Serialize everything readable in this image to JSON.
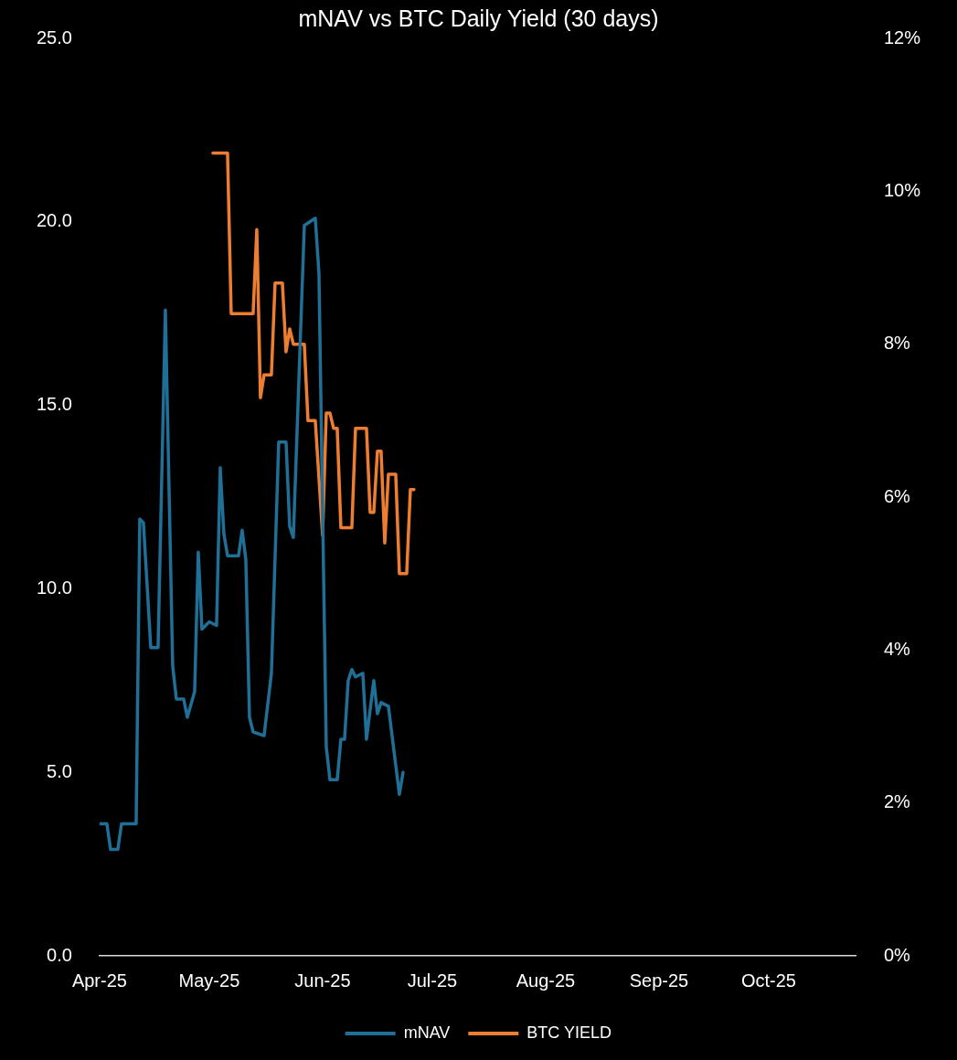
{
  "chart_data": {
    "type": "line",
    "title": "mNAV vs BTC Daily Yield (30 days)",
    "xlim": [
      "2025-04-01",
      "2025-10-25"
    ],
    "xticks": [
      {
        "value": "2025-04-01",
        "label": "Apr-25"
      },
      {
        "value": "2025-05-01",
        "label": "May-25"
      },
      {
        "value": "2025-06-01",
        "label": "Jun-25"
      },
      {
        "value": "2025-07-01",
        "label": "Jul-25"
      },
      {
        "value": "2025-08-01",
        "label": "Aug-25"
      },
      {
        "value": "2025-09-01",
        "label": "Sep-25"
      },
      {
        "value": "2025-10-01",
        "label": "Oct-25"
      }
    ],
    "ylim": [
      0,
      25
    ],
    "yticks": [
      {
        "value": 0,
        "label": "0.0"
      },
      {
        "value": 5,
        "label": "5.0"
      },
      {
        "value": 10,
        "label": "10.0"
      },
      {
        "value": 15,
        "label": "15.0"
      },
      {
        "value": 20,
        "label": "20.0"
      },
      {
        "value": 25,
        "label": "25.0"
      }
    ],
    "y2lim": [
      0,
      12
    ],
    "y2ticks": [
      {
        "value": 0,
        "label": "0%"
      },
      {
        "value": 2,
        "label": "2%"
      },
      {
        "value": 4,
        "label": "4%"
      },
      {
        "value": 6,
        "label": "6%"
      },
      {
        "value": 8,
        "label": "8%"
      },
      {
        "value": 10,
        "label": "10%"
      },
      {
        "value": 12,
        "label": "12%"
      }
    ],
    "grid": false,
    "legend": "bottom",
    "marker": "none",
    "line_style": "solid",
    "series": [
      {
        "name": "mNAV",
        "color": "#1f6f96",
        "x": [
          "2025-04-01",
          "2025-04-03",
          "2025-04-04",
          "2025-04-06",
          "2025-04-07",
          "2025-04-11",
          "2025-04-12",
          "2025-04-13",
          "2025-04-15",
          "2025-04-17",
          "2025-04-19",
          "2025-04-21",
          "2025-04-22",
          "2025-04-24",
          "2025-04-25",
          "2025-04-27",
          "2025-04-28",
          "2025-04-29",
          "2025-05-01",
          "2025-05-03",
          "2025-05-04",
          "2025-05-05",
          "2025-05-06",
          "2025-05-09",
          "2025-05-10",
          "2025-05-11",
          "2025-05-12",
          "2025-05-13",
          "2025-05-16",
          "2025-05-18",
          "2025-05-20",
          "2025-05-22",
          "2025-05-23",
          "2025-05-24",
          "2025-05-27",
          "2025-05-30",
          "2025-05-31",
          "2025-06-02",
          "2025-06-03",
          "2025-06-05",
          "2025-06-06",
          "2025-06-07",
          "2025-06-08",
          "2025-06-09",
          "2025-06-10",
          "2025-06-12",
          "2025-06-13",
          "2025-06-15",
          "2025-06-16",
          "2025-06-17",
          "2025-06-19",
          "2025-06-22",
          "2025-06-23"
        ],
        "values": [
          3.6,
          3.6,
          2.9,
          2.9,
          3.6,
          3.6,
          11.9,
          11.8,
          8.4,
          8.4,
          17.6,
          7.9,
          7.0,
          7.0,
          6.5,
          7.2,
          11.0,
          8.9,
          9.1,
          9.0,
          13.3,
          11.5,
          10.9,
          10.9,
          11.6,
          10.8,
          6.5,
          6.1,
          6.0,
          7.7,
          14.0,
          14.0,
          11.7,
          11.4,
          19.9,
          20.1,
          18.6,
          5.7,
          4.8,
          4.8,
          5.9,
          5.9,
          7.5,
          7.8,
          7.6,
          7.7,
          5.9,
          7.5,
          6.6,
          6.9,
          6.8,
          4.4,
          5.0
        ]
      },
      {
        "name": "BTC YIELD",
        "color": "#ed7d31",
        "axis": "y2",
        "x": [
          "2025-05-02",
          "2025-05-06",
          "2025-05-07",
          "2025-05-13",
          "2025-05-14",
          "2025-05-15",
          "2025-05-16",
          "2025-05-18",
          "2025-05-19",
          "2025-05-21",
          "2025-05-22",
          "2025-05-23",
          "2025-05-24",
          "2025-05-27",
          "2025-05-28",
          "2025-05-30",
          "2025-06-01",
          "2025-06-02",
          "2025-06-03",
          "2025-06-04",
          "2025-06-05",
          "2025-06-06",
          "2025-06-09",
          "2025-06-10",
          "2025-06-13",
          "2025-06-14",
          "2025-06-15",
          "2025-06-16",
          "2025-06-17",
          "2025-06-18",
          "2025-06-19",
          "2025-06-21",
          "2025-06-22",
          "2025-06-24",
          "2025-06-25",
          "2025-06-26"
        ],
        "values": [
          10.5,
          10.5,
          8.4,
          8.4,
          9.5,
          7.3,
          7.6,
          7.6,
          8.8,
          8.8,
          7.9,
          8.2,
          8.0,
          8.0,
          7.0,
          7.0,
          5.5,
          7.1,
          7.1,
          6.9,
          6.9,
          5.6,
          5.6,
          6.9,
          6.9,
          5.8,
          5.8,
          6.6,
          6.6,
          5.4,
          6.3,
          6.3,
          5.0,
          5.0,
          6.1,
          6.1
        ]
      }
    ]
  }
}
